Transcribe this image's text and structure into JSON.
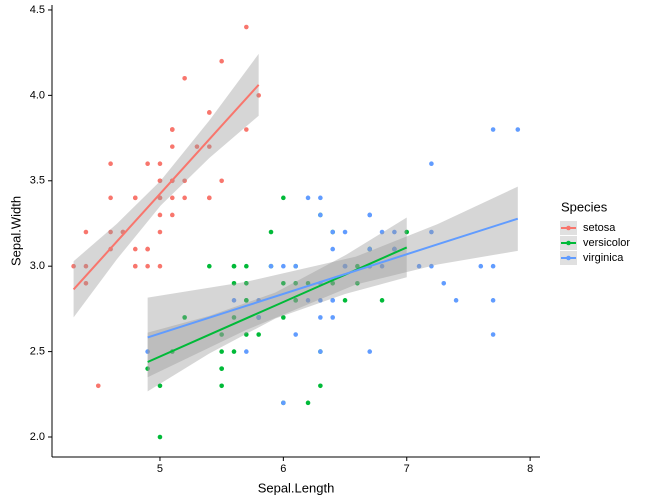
{
  "chart_data": {
    "type": "scatter",
    "x_label": "Sepal.Length",
    "y_label": "Sepal.Width",
    "legend_title": "Species",
    "legend": "right",
    "grid": false,
    "xlim": [
      4.125,
      8.08
    ],
    "ylim": [
      1.883,
      4.529
    ],
    "xticks": [
      5,
      6,
      7,
      8
    ],
    "yticks": [
      {
        "value": 2.0,
        "label": "2.0"
      },
      2.5,
      {
        "value": 3.0,
        "label": "3.0"
      },
      3.5,
      {
        "value": 4.0,
        "label": "4.0"
      },
      4.5
    ],
    "series": [
      {
        "name": "setosa",
        "color": "#F8766D",
        "x": [
          5.1,
          4.9,
          4.7,
          4.6,
          5.0,
          5.4,
          4.6,
          5.0,
          4.4,
          4.9,
          5.4,
          4.8,
          4.8,
          4.3,
          5.8,
          5.7,
          5.4,
          5.1,
          5.7,
          5.1,
          5.4,
          5.1,
          4.6,
          5.1,
          4.8,
          5.0,
          5.0,
          5.2,
          5.2,
          4.7,
          4.8,
          5.4,
          5.2,
          5.5,
          4.9,
          5.0,
          5.5,
          4.9,
          4.4,
          5.1,
          5.0,
          4.5,
          4.4,
          5.0,
          5.1,
          4.8,
          5.1,
          4.6,
          5.3,
          5.0
        ],
        "values": [
          3.5,
          3.0,
          3.2,
          3.1,
          3.6,
          3.9,
          3.4,
          3.4,
          2.9,
          3.1,
          3.7,
          3.4,
          3.0,
          3.0,
          4.0,
          4.4,
          3.9,
          3.5,
          3.8,
          3.8,
          3.4,
          3.7,
          3.6,
          3.3,
          3.4,
          3.0,
          3.4,
          3.5,
          3.4,
          3.2,
          3.1,
          3.4,
          4.1,
          4.2,
          3.1,
          3.2,
          3.5,
          3.6,
          3.0,
          3.4,
          3.5,
          2.3,
          3.2,
          3.5,
          3.8,
          3.0,
          3.8,
          3.2,
          3.7,
          3.3
        ],
        "fit": {
          "x": [
            4.3,
            4.65,
            5.006,
            5.4,
            5.8
          ],
          "y": [
            2.864,
            3.144,
            3.428,
            3.743,
            4.062
          ],
          "lower": [
            2.7,
            3.04,
            3.355,
            3.633,
            3.881
          ],
          "upper": [
            3.029,
            3.248,
            3.501,
            3.853,
            4.243
          ]
        }
      },
      {
        "name": "versicolor",
        "color": "#00BA38",
        "x": [
          7.0,
          6.4,
          6.9,
          5.5,
          6.5,
          5.7,
          6.3,
          4.9,
          6.6,
          5.2,
          5.0,
          5.9,
          6.0,
          6.1,
          5.6,
          6.7,
          5.6,
          5.8,
          6.2,
          5.6,
          5.9,
          6.1,
          6.3,
          6.1,
          6.4,
          6.6,
          6.8,
          6.7,
          6.0,
          5.7,
          5.5,
          5.5,
          5.8,
          6.0,
          5.4,
          6.0,
          6.7,
          6.3,
          5.6,
          5.5,
          5.5,
          6.1,
          5.8,
          5.0,
          5.6,
          5.7,
          5.7,
          6.2,
          5.1,
          5.7
        ],
        "values": [
          3.2,
          3.2,
          3.1,
          2.3,
          2.8,
          2.8,
          3.3,
          2.4,
          2.9,
          2.7,
          2.0,
          3.0,
          2.2,
          2.9,
          2.9,
          3.1,
          3.0,
          2.7,
          2.2,
          2.5,
          3.2,
          2.8,
          2.5,
          2.8,
          2.9,
          3.0,
          2.8,
          3.0,
          2.9,
          2.6,
          2.4,
          2.4,
          2.7,
          2.7,
          3.0,
          3.4,
          3.1,
          2.3,
          3.0,
          2.5,
          2.6,
          3.0,
          2.6,
          2.3,
          2.7,
          3.0,
          2.9,
          2.9,
          2.5,
          2.8
        ],
        "fit": {
          "x": [
            4.9,
            5.4,
            5.936,
            6.5,
            7.0
          ],
          "y": [
            2.439,
            2.599,
            2.77,
            2.95,
            3.11
          ],
          "lower": [
            2.267,
            2.489,
            2.694,
            2.837,
            2.935
          ],
          "upper": [
            2.611,
            2.709,
            2.846,
            3.063,
            3.285
          ]
        }
      },
      {
        "name": "virginica",
        "color": "#619CFF",
        "x": [
          6.3,
          5.8,
          7.1,
          6.3,
          6.5,
          7.6,
          4.9,
          7.3,
          6.7,
          7.2,
          6.5,
          6.4,
          6.8,
          5.7,
          5.8,
          6.4,
          6.5,
          7.7,
          7.7,
          6.0,
          6.9,
          5.6,
          7.7,
          6.3,
          6.7,
          7.2,
          6.2,
          6.1,
          6.4,
          7.2,
          7.4,
          7.9,
          6.4,
          6.3,
          6.1,
          7.7,
          6.3,
          6.4,
          6.0,
          6.9,
          6.7,
          6.9,
          5.8,
          6.8,
          6.7,
          6.7,
          6.3,
          6.5,
          6.2,
          5.9
        ],
        "values": [
          3.3,
          2.7,
          3.0,
          2.9,
          3.0,
          3.0,
          2.5,
          2.9,
          2.5,
          3.6,
          3.2,
          2.7,
          3.0,
          2.5,
          2.8,
          3.2,
          3.0,
          3.8,
          2.6,
          2.2,
          3.2,
          2.8,
          2.8,
          2.7,
          3.3,
          3.2,
          2.8,
          3.0,
          2.8,
          3.0,
          2.8,
          3.8,
          2.8,
          2.8,
          2.6,
          3.0,
          3.4,
          3.1,
          3.0,
          3.1,
          3.1,
          3.1,
          2.7,
          3.2,
          3.3,
          3.0,
          2.5,
          3.0,
          3.4,
          3.0
        ],
        "fit": {
          "x": [
            4.9,
            5.7,
            6.588,
            7.25,
            7.9
          ],
          "y": [
            2.583,
            2.768,
            2.974,
            3.128,
            3.278
          ],
          "lower": [
            2.35,
            2.627,
            2.893,
            3.01,
            3.09
          ],
          "upper": [
            2.816,
            2.909,
            3.056,
            3.246,
            3.466
          ]
        }
      }
    ]
  }
}
